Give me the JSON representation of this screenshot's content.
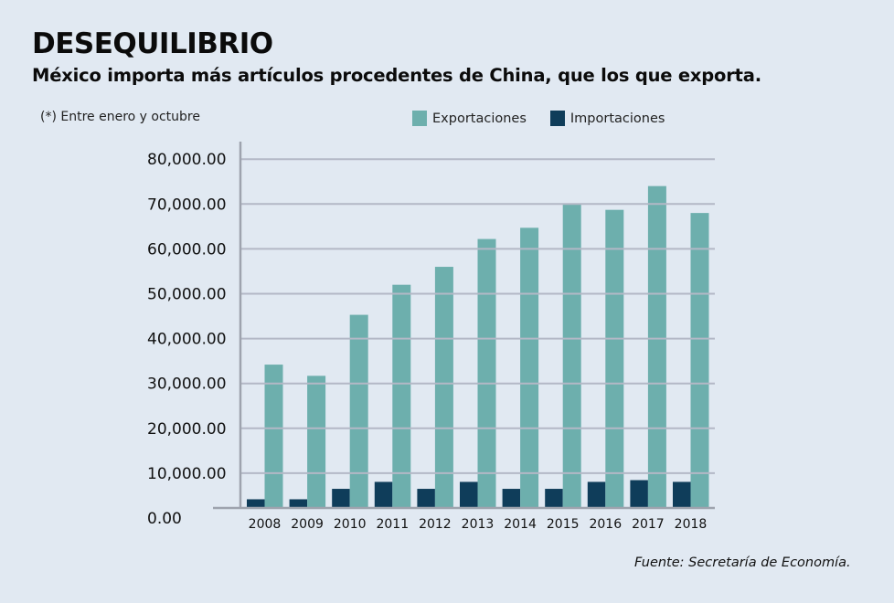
{
  "header": {
    "title": "DESEQUILIBRIO",
    "subtitle": "México importa más artículos procedentes de China, que los que exporta.",
    "note": "(*) Entre enero y octubre"
  },
  "footer": {
    "source": "Fuente: Secretaría de Economía."
  },
  "colors": {
    "background": "#e1e9f2",
    "exportaciones": "#6dafad",
    "importaciones": "#0f3d5a",
    "grid": "#b3b8c6",
    "axis": "#9ea3ae"
  },
  "chart_data": {
    "type": "bar",
    "title": "DESEQUILIBRIO",
    "subtitle": "México importa más artículos procedentes de China, que los que exporta.",
    "xlabel": "",
    "ylabel": "",
    "ylim": [
      0,
      80000
    ],
    "yticks": [
      0,
      10000,
      20000,
      30000,
      40000,
      50000,
      60000,
      70000,
      80000
    ],
    "ytick_labels": [
      "0.00",
      "10,000.00",
      "20,000.00",
      "30,000.00",
      "40,000.00",
      "50,000.00",
      "60,000.00",
      "70,000.00",
      "80,000.00"
    ],
    "grid": true,
    "legend_position": "top-center",
    "categories": [
      "2008",
      "2009",
      "2010",
      "2011",
      "2012",
      "2013",
      "2014",
      "2015",
      "2016",
      "2017",
      "2018"
    ],
    "series": [
      {
        "name": "Importaciones",
        "values": [
          2500,
          2500,
          5500,
          7500,
          5500,
          7500,
          5500,
          5500,
          7500,
          8000,
          7500
        ]
      },
      {
        "name": "Exportaciones",
        "values": [
          34200,
          31700,
          45300,
          52000,
          56000,
          62200,
          64700,
          70000,
          68700,
          74000,
          68000
        ]
      }
    ],
    "legend": [
      "Exportaciones",
      "Importaciones"
    ]
  }
}
